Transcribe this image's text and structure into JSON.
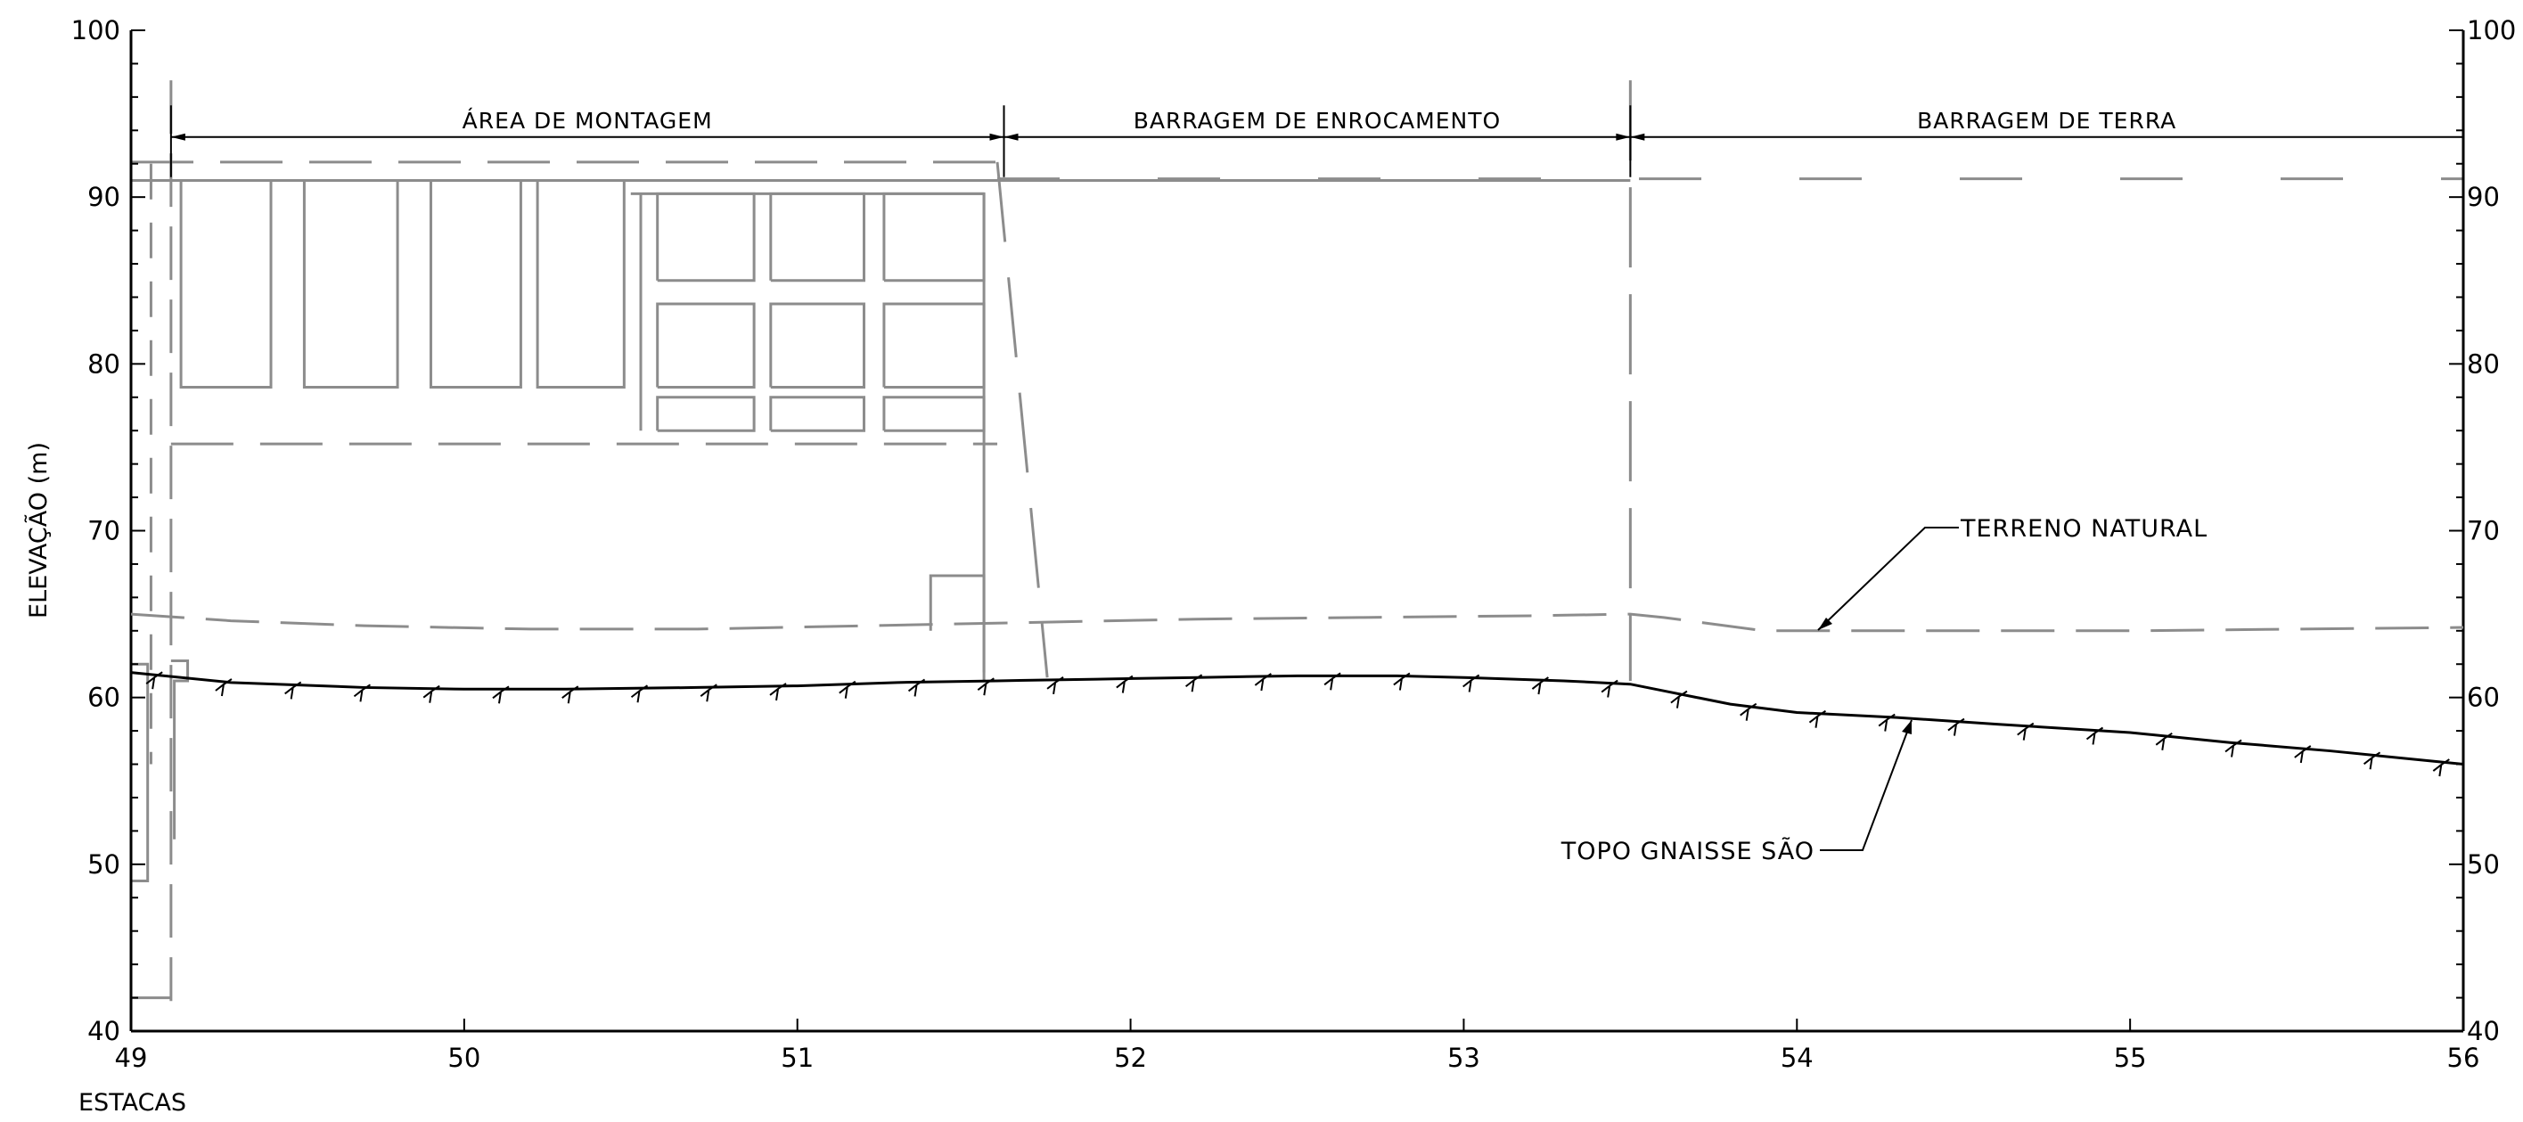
{
  "chart_data": {
    "type": "line",
    "xlabel": "ESTACAS",
    "ylabel": "ELEVAÇÃO (m)",
    "xlim": [
      49,
      56
    ],
    "ylim": [
      40,
      100
    ],
    "x_ticks": [
      "49",
      "50",
      "51",
      "52",
      "53",
      "54",
      "55",
      "56"
    ],
    "y_ticks": [
      "40",
      "50",
      "60",
      "70",
      "80",
      "90",
      "100"
    ],
    "zones": [
      {
        "label": "ÁREA DE MONTAGEM",
        "x_start": 49.12,
        "x_end": 51.62
      },
      {
        "label": "BARRAGEM DE ENROCAMENTO",
        "x_start": 51.62,
        "x_end": 53.5
      },
      {
        "label": "BARRAGEM DE TERRA",
        "x_start": 53.5,
        "x_end": 56
      }
    ],
    "annotations": [
      {
        "label": "TERRENO NATURAL"
      },
      {
        "label": "TOPO GNAISSE SÃO"
      }
    ],
    "series": [
      {
        "line_style": "dashed-gray",
        "x": [
          49.0,
          49.3,
          49.7,
          50.2,
          50.7,
          51.2,
          51.7,
          52.2,
          52.7,
          53.2,
          53.5,
          53.6,
          53.9,
          54.5,
          55.0,
          55.5,
          56.0
        ],
        "y": [
          65.0,
          64.6,
          64.3,
          64.1,
          64.1,
          64.3,
          64.5,
          64.7,
          64.8,
          64.9,
          65.0,
          64.8,
          64.0,
          64.0,
          64.0,
          64.1,
          64.2
        ]
      },
      {
        "line_style": "solid-black-hatched",
        "x": [
          49.0,
          49.3,
          49.7,
          50.0,
          50.3,
          50.7,
          51.0,
          51.3,
          51.6,
          51.9,
          52.2,
          52.5,
          52.8,
          53.0,
          53.3,
          53.5,
          53.6,
          53.8,
          54.0,
          54.3,
          54.6,
          55.0,
          55.3,
          55.6,
          56.0
        ],
        "y": [
          61.5,
          60.9,
          60.6,
          60.5,
          60.5,
          60.6,
          60.7,
          60.9,
          61.0,
          61.1,
          61.2,
          61.3,
          61.3,
          61.2,
          61.0,
          60.8,
          60.4,
          59.6,
          59.1,
          58.8,
          58.4,
          57.9,
          57.3,
          56.8,
          56.0
        ]
      }
    ]
  }
}
